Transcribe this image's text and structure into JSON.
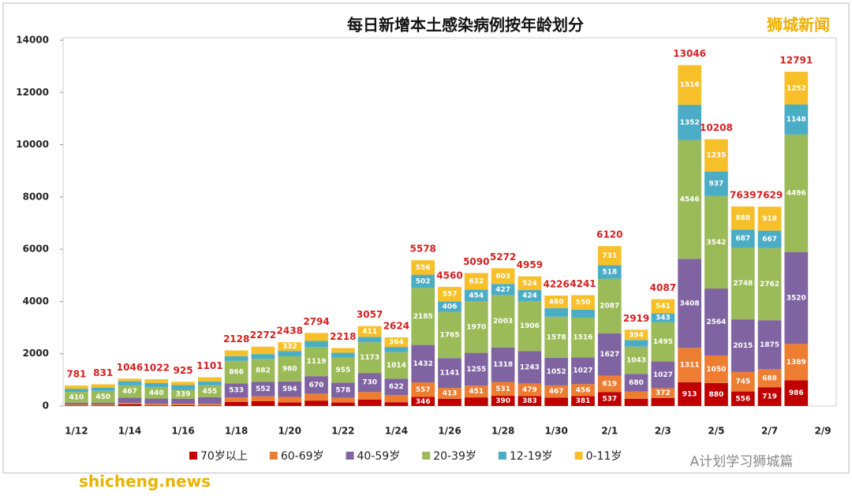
{
  "chart_data": {
    "type": "stacked_bar",
    "title": "每日新增本土感染病例按年龄划分",
    "brand": "狮城新闻",
    "watermark": "shicheng.news",
    "wechat_watermark": "A计划学习狮城篇",
    "categories": [
      "1/12",
      null,
      "1/14",
      null,
      "1/16",
      null,
      "1/18",
      null,
      "1/20",
      null,
      "1/22",
      null,
      "1/24",
      null,
      "1/26",
      null,
      "1/28",
      null,
      "1/30",
      null,
      "2/1",
      null,
      "2/3",
      null,
      "2/5",
      null,
      "2/7",
      null,
      "2/9"
    ],
    "ylim": [
      0,
      14000
    ],
    "yticks": [
      0,
      2000,
      4000,
      6000,
      8000,
      10000,
      12000,
      14000
    ],
    "totals": [
      781,
      831,
      1046,
      1022,
      925,
      1101,
      2128,
      2272,
      2438,
      2794,
      2218,
      3057,
      2624,
      5578,
      4560,
      5090,
      5272,
      4959,
      4226,
      4241,
      6120,
      2919,
      4087,
      13046,
      10208,
      7639,
      7629,
      12791,
      null
    ],
    "series": [
      {
        "name": "70岁以上",
        "color": "#c00000",
        "values": [
          20,
          22,
          61,
          25,
          35,
          24,
          151,
          181,
          134,
          206,
          133,
          242,
          145,
          346,
          278,
          328,
          390,
          383,
          321,
          381,
          537,
          275,
          309,
          913,
          880,
          556,
          719,
          986,
          null
        ]
      },
      {
        "name": "60-69岁",
        "color": "#ed7d31",
        "values": [
          40,
          40,
          60,
          60,
          55,
          60,
          179,
          188,
          212,
          265,
          186,
          291,
          277,
          557,
          413,
          451,
          531,
          479,
          467,
          456,
          619,
          275,
          372,
          1311,
          1050,
          745,
          688,
          1389,
          null
        ]
      },
      {
        "name": "40-59岁",
        "color": "#8064a2",
        "values": [
          68,
          66,
          200,
          200,
          190,
          254,
          533,
          552,
          594,
          670,
          578,
          730,
          622,
          1432,
          1141,
          1255,
          1318,
          1243,
          1052,
          1027,
          1627,
          680,
          1027,
          3408,
          2564,
          2015,
          1875,
          3520,
          null
        ]
      },
      {
        "name": "20-39岁",
        "color": "#9bbb59",
        "values": [
          410,
          450,
          467,
          440,
          339,
          455,
          866,
          882,
          960,
          1119,
          955,
          1173,
          1014,
          2185,
          1765,
          1970,
          2003,
          1906,
          1578,
          1516,
          2087,
          1043,
          1495,
          4546,
          3542,
          2748,
          2762,
          4496,
          null
        ]
      },
      {
        "name": "12-19岁",
        "color": "#4bacc6",
        "values": [
          121,
          127,
          159,
          155,
          180,
          148,
          174,
          183,
          206,
          228,
          184,
          210,
          202,
          502,
          406,
          454,
          427,
          424,
          328,
          311,
          518,
          252,
          343,
          1352,
          937,
          687,
          667,
          1148,
          null
        ]
      },
      {
        "name": "0-11岁",
        "color": "#f7c02b",
        "values": [
          122,
          126,
          99,
          142,
          126,
          160,
          225,
          286,
          332,
          306,
          182,
          411,
          364,
          556,
          557,
          632,
          603,
          524,
          480,
          550,
          731,
          394,
          541,
          1516,
          1235,
          888,
          918,
          1252,
          null
        ]
      }
    ]
  }
}
